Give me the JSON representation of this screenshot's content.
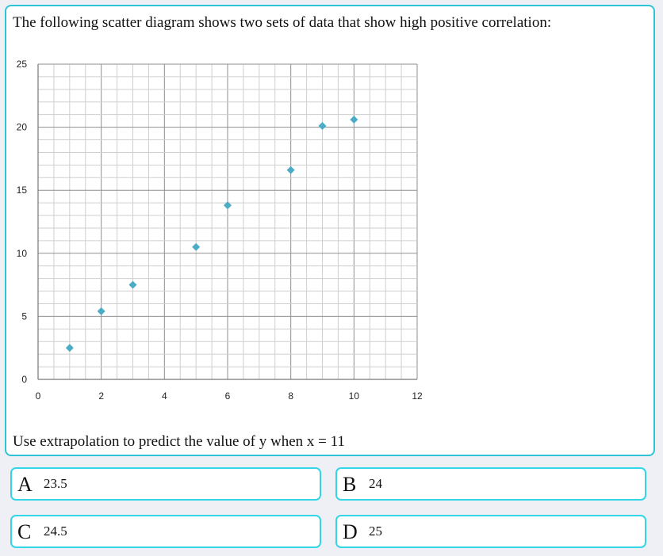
{
  "question": {
    "text": "The following scatter diagram shows two sets of data that show high positive correlation:",
    "prompt": "Use extrapolation to predict the value of y when x = 11"
  },
  "chart_data": {
    "type": "scatter",
    "title": "",
    "xlabel": "",
    "ylabel": "",
    "xlim": [
      0,
      12
    ],
    "ylim": [
      0,
      25
    ],
    "x_ticks": [
      "0",
      "2",
      "4",
      "6",
      "8",
      "10",
      "12"
    ],
    "y_ticks": [
      "0",
      "5",
      "10",
      "15",
      "20",
      "25"
    ],
    "grid": true,
    "marker": "diamond",
    "color": "#4bacc6",
    "points": [
      {
        "x": 1,
        "y": 2.5
      },
      {
        "x": 2,
        "y": 5.4
      },
      {
        "x": 3,
        "y": 7.5
      },
      {
        "x": 5,
        "y": 10.5
      },
      {
        "x": 6,
        "y": 13.8
      },
      {
        "x": 8,
        "y": 16.6
      },
      {
        "x": 9,
        "y": 20.1
      },
      {
        "x": 10,
        "y": 20.6
      }
    ]
  },
  "answers": [
    {
      "letter": "A",
      "value": "23.5"
    },
    {
      "letter": "B",
      "value": "24"
    },
    {
      "letter": "C",
      "value": "24.5"
    },
    {
      "letter": "D",
      "value": "25"
    }
  ],
  "colors": {
    "accent": "#2ec4d6",
    "answer_border": "#33d6e6",
    "background": "#eef0f5"
  }
}
